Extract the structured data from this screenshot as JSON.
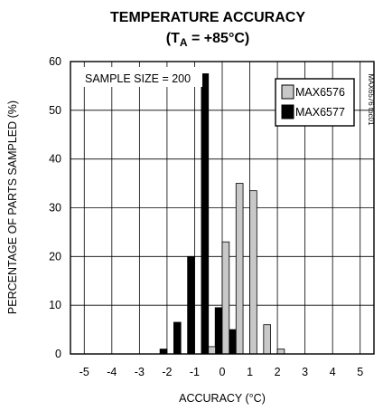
{
  "chart_data": {
    "type": "bar",
    "title": "TEMPERATURE ACCURACY",
    "subtitle_prefix": "(T",
    "subtitle_sub": "A",
    "subtitle_suffix": " = +85°C)",
    "xlabel": "ACCURACY (°C)",
    "ylabel": "PERCENTAGE OF PARTS SAMPLED (%)",
    "xlim": [
      -5.5,
      5.5
    ],
    "ylim": [
      0,
      60
    ],
    "x_ticks": [
      -5,
      -4,
      -3,
      -2,
      -1,
      0,
      1,
      2,
      3,
      4,
      5
    ],
    "x_tick_labels": [
      "-5",
      "-4",
      "-3",
      "-2",
      "-1",
      "0",
      "1",
      "2",
      "3",
      "4",
      "5"
    ],
    "y_ticks": [
      0,
      10,
      20,
      30,
      40,
      50,
      60
    ],
    "y_tick_labels": [
      "0",
      "10",
      "20",
      "30",
      "40",
      "50",
      "60"
    ],
    "grid": true,
    "annotation": "SAMPLE SIZE = 200",
    "side_id": "MAX6576 toc01",
    "legend_position": "top-right",
    "series": [
      {
        "name": "MAX6576",
        "color": "#c8c8c8",
        "points": [
          {
            "x": -0.5,
            "y": 1.5
          },
          {
            "x": 0.0,
            "y": 23
          },
          {
            "x": 0.5,
            "y": 35
          },
          {
            "x": 1.0,
            "y": 33.5
          },
          {
            "x": 1.5,
            "y": 6
          },
          {
            "x": 2.0,
            "y": 1
          }
        ]
      },
      {
        "name": "MAX6577",
        "color": "#000000",
        "points": [
          {
            "x": -2.0,
            "y": 1
          },
          {
            "x": -1.5,
            "y": 6.5
          },
          {
            "x": -1.0,
            "y": 20
          },
          {
            "x": -0.5,
            "y": 57.5
          },
          {
            "x": 0.0,
            "y": 9.5
          },
          {
            "x": 0.5,
            "y": 5
          }
        ]
      }
    ]
  }
}
